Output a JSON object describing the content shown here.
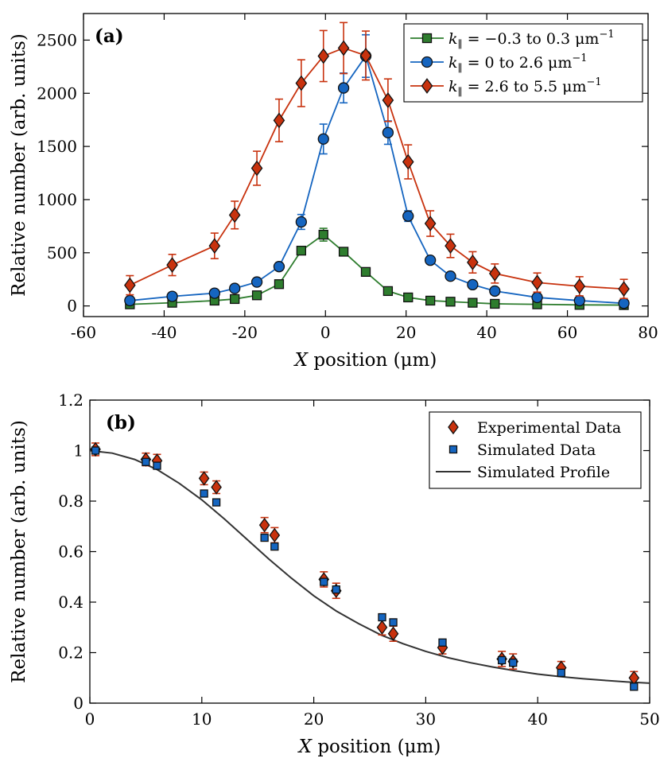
{
  "chart_data": [
    {
      "type": "line",
      "panel_label": "(a)",
      "xlabel": "X position (μm)",
      "ylabel": "Relative number (arb. units)",
      "xlim": [
        -60,
        80
      ],
      "ylim": [
        -100,
        2750
      ],
      "xticks": [
        -60,
        -40,
        -20,
        0,
        20,
        40,
        60,
        80
      ],
      "yticks": [
        0,
        500,
        1000,
        1500,
        2000,
        2500
      ],
      "xtick_labels": [
        "-60",
        "-40",
        "-20",
        "0",
        "20",
        "40",
        "60",
        "80"
      ],
      "ytick_labels": [
        "0",
        "500",
        "1000",
        "1500",
        "2000",
        "2500"
      ],
      "legend_position": "top-right",
      "series": [
        {
          "name": "k∥ = −0.3 to 0.3 μm⁻¹",
          "legend_main": "k",
          "legend_sub": "∥",
          "legend_rest": " = −0.3 to 0.3 μm",
          "legend_sup": "−1",
          "color": "#2e7d2e",
          "marker": "square",
          "x": [
            -48.5,
            -38,
            -27.5,
            -22.5,
            -17,
            -11.5,
            -6,
            -0.5,
            4.5,
            10,
            15.5,
            20.5,
            26,
            31,
            36.5,
            42,
            52.5,
            63,
            74
          ],
          "y": [
            15,
            30,
            50,
            65,
            100,
            205,
            520,
            670,
            510,
            320,
            140,
            80,
            50,
            40,
            30,
            20,
            15,
            10,
            8
          ],
          "err": [
            8,
            8,
            10,
            12,
            15,
            20,
            35,
            60,
            35,
            25,
            15,
            10,
            8,
            8,
            6,
            5,
            5,
            4,
            4
          ]
        },
        {
          "name": "k∥ = 0 to 2.6 μm⁻¹",
          "legend_main": "k",
          "legend_sub": "∥",
          "legend_rest": " = 0 to 2.6 μm",
          "legend_sup": "−1",
          "color": "#1565c0",
          "marker": "circle",
          "x": [
            -48.5,
            -38,
            -27.5,
            -22.5,
            -17,
            -11.5,
            -6,
            -0.5,
            4.5,
            10,
            15.5,
            20.5,
            26,
            31,
            36.5,
            42,
            52.5,
            63,
            74
          ],
          "y": [
            50,
            90,
            120,
            165,
            225,
            370,
            790,
            1570,
            2050,
            2350,
            1630,
            845,
            430,
            280,
            200,
            140,
            80,
            50,
            25
          ],
          "err": [
            15,
            15,
            20,
            25,
            30,
            35,
            70,
            140,
            140,
            200,
            110,
            50,
            30,
            25,
            20,
            20,
            15,
            15,
            10
          ]
        },
        {
          "name": "k∥ = 2.6 to 5.5 μm⁻¹",
          "legend_main": "k",
          "legend_sub": "∥",
          "legend_rest": " = 2.6 to 5.5 μm",
          "legend_sup": "−1",
          "color": "#c8320e",
          "marker": "diamond",
          "x": [
            -48.5,
            -38,
            -27.5,
            -22.5,
            -17,
            -11.5,
            -6,
            -0.5,
            4.5,
            10,
            15.5,
            20.5,
            26,
            31,
            36.5,
            42,
            52.5,
            63,
            74
          ],
          "y": [
            195,
            385,
            565,
            855,
            1295,
            1745,
            2095,
            2350,
            2425,
            2355,
            1935,
            1355,
            775,
            565,
            410,
            305,
            220,
            185,
            160
          ],
          "err": [
            90,
            100,
            120,
            130,
            160,
            200,
            220,
            240,
            240,
            230,
            200,
            160,
            120,
            110,
            100,
            90,
            90,
            90,
            90
          ]
        }
      ]
    },
    {
      "type": "scatter",
      "panel_label": "(b)",
      "xlabel": "X position (μm)",
      "ylabel": "Relative number (arb. units)",
      "xlim": [
        0,
        50
      ],
      "ylim": [
        0,
        1.2
      ],
      "xticks": [
        0,
        10,
        20,
        30,
        40,
        50
      ],
      "yticks": [
        0,
        0.2,
        0.4,
        0.6,
        0.8,
        1,
        1.2
      ],
      "xtick_labels": [
        "0",
        "10",
        "20",
        "30",
        "40",
        "50"
      ],
      "ytick_labels": [
        "0",
        "0.2",
        "0.4",
        "0.6",
        "0.8",
        "1",
        "1.2"
      ],
      "legend_position": "top-right",
      "series": [
        {
          "name": "Experimental Data",
          "color": "#c8320e",
          "marker": "diamond",
          "x": [
            0.5,
            5,
            6,
            10.2,
            11.3,
            15.6,
            16.5,
            20.9,
            22,
            26.1,
            27.1,
            31.5,
            36.8,
            37.8,
            42.1,
            48.6
          ],
          "y": [
            1.005,
            0.965,
            0.96,
            0.89,
            0.855,
            0.705,
            0.665,
            0.49,
            0.445,
            0.3,
            0.275,
            0.22,
            0.175,
            0.165,
            0.14,
            0.1
          ],
          "err": [
            0.025,
            0.025,
            0.025,
            0.025,
            0.025,
            0.03,
            0.03,
            0.03,
            0.03,
            0.03,
            0.03,
            0.025,
            0.03,
            0.03,
            0.025,
            0.025
          ]
        },
        {
          "name": "Simulated Data",
          "color": "#1565c0",
          "marker": "square",
          "x": [
            0.5,
            5,
            6,
            10.2,
            11.3,
            15.6,
            16.5,
            20.9,
            22,
            26.1,
            27.1,
            31.5,
            36.8,
            37.8,
            42.1,
            48.6
          ],
          "y": [
            1.0,
            0.955,
            0.94,
            0.83,
            0.795,
            0.655,
            0.62,
            0.48,
            0.45,
            0.34,
            0.32,
            0.24,
            0.17,
            0.16,
            0.12,
            0.065
          ]
        },
        {
          "name": "Simulated Profile",
          "color": "#333333",
          "marker": "line",
          "x": [
            0,
            2,
            4,
            6,
            8,
            10,
            12,
            14,
            16,
            18,
            20,
            22,
            24,
            26,
            28,
            30,
            32,
            34,
            36,
            38,
            40,
            42,
            44,
            46,
            48,
            50
          ],
          "y": [
            1.0,
            0.99,
            0.965,
            0.925,
            0.87,
            0.805,
            0.73,
            0.65,
            0.57,
            0.495,
            0.425,
            0.365,
            0.315,
            0.27,
            0.235,
            0.205,
            0.18,
            0.16,
            0.143,
            0.128,
            0.115,
            0.105,
            0.097,
            0.09,
            0.084,
            0.079
          ]
        }
      ]
    }
  ]
}
